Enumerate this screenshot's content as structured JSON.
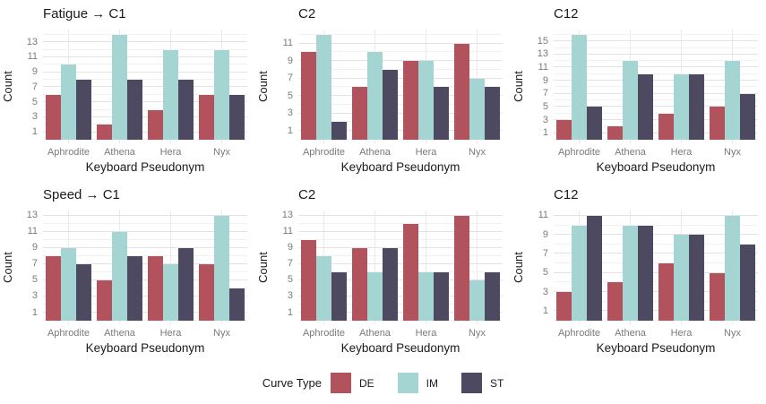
{
  "axes": {
    "x_title": "Keyboard Pseudonym",
    "y_title": "Count"
  },
  "legend": {
    "title": "Curve Type",
    "entries": [
      {
        "label": "DE",
        "color": "#B2525C"
      },
      {
        "label": "IM",
        "color": "#A5D5D3"
      },
      {
        "label": "ST",
        "color": "#4C4961"
      }
    ]
  },
  "chart_data": [
    {
      "type": "bar",
      "title": "Fatigue → C1",
      "xlabel": "Keyboard Pseudonym",
      "ylabel": "Count",
      "categories": [
        "Aphrodite",
        "Athena",
        "Hera",
        "Nyx"
      ],
      "yticks": [
        1,
        3,
        5,
        7,
        9,
        11,
        13
      ],
      "ylim": [
        0,
        14.7
      ],
      "legend": "none",
      "series": [
        {
          "name": "DE",
          "values": [
            6,
            2,
            4,
            6
          ]
        },
        {
          "name": "IM",
          "values": [
            10,
            14,
            12,
            12
          ]
        },
        {
          "name": "ST",
          "values": [
            8,
            8,
            8,
            6
          ]
        }
      ]
    },
    {
      "type": "bar",
      "title": "C2",
      "xlabel": "Keyboard Pseudonym",
      "ylabel": "Count",
      "categories": [
        "Aphrodite",
        "Athena",
        "Hera",
        "Nyx"
      ],
      "yticks": [
        1,
        3,
        5,
        7,
        9,
        11
      ],
      "ylim": [
        0,
        12.6
      ],
      "legend": "none",
      "series": [
        {
          "name": "DE",
          "values": [
            10,
            6,
            9,
            11
          ]
        },
        {
          "name": "IM",
          "values": [
            12,
            10,
            9,
            7
          ]
        },
        {
          "name": "ST",
          "values": [
            2,
            8,
            6,
            6
          ]
        }
      ]
    },
    {
      "type": "bar",
      "title": "C12",
      "xlabel": "Keyboard Pseudonym",
      "ylabel": "Count",
      "categories": [
        "Aphrodite",
        "Athena",
        "Hera",
        "Nyx"
      ],
      "yticks": [
        1,
        3,
        5,
        7,
        9,
        11,
        13,
        15
      ],
      "ylim": [
        0,
        16.8
      ],
      "legend": "none",
      "series": [
        {
          "name": "DE",
          "values": [
            3,
            2,
            4,
            5
          ]
        },
        {
          "name": "IM",
          "values": [
            16,
            12,
            10,
            12
          ]
        },
        {
          "name": "ST",
          "values": [
            5,
            10,
            10,
            7
          ]
        }
      ]
    },
    {
      "type": "bar",
      "title": "Speed → C1",
      "xlabel": "Keyboard Pseudonym",
      "ylabel": "Count",
      "categories": [
        "Aphrodite",
        "Athena",
        "Hera",
        "Nyx"
      ],
      "yticks": [
        1,
        3,
        5,
        7,
        9,
        11,
        13
      ],
      "ylim": [
        0,
        13.65
      ],
      "legend": "none",
      "series": [
        {
          "name": "DE",
          "values": [
            8,
            5,
            8,
            7
          ]
        },
        {
          "name": "IM",
          "values": [
            9,
            11,
            7,
            13
          ]
        },
        {
          "name": "ST",
          "values": [
            7,
            8,
            9,
            4
          ]
        }
      ]
    },
    {
      "type": "bar",
      "title": "C2",
      "xlabel": "Keyboard Pseudonym",
      "ylabel": "Count",
      "categories": [
        "Aphrodite",
        "Athena",
        "Hera",
        "Nyx"
      ],
      "yticks": [
        1,
        3,
        5,
        7,
        9,
        11,
        13
      ],
      "ylim": [
        0,
        13.65
      ],
      "legend": "none",
      "series": [
        {
          "name": "DE",
          "values": [
            10,
            9,
            12,
            13
          ]
        },
        {
          "name": "IM",
          "values": [
            8,
            6,
            6,
            5
          ]
        },
        {
          "name": "ST",
          "values": [
            6,
            9,
            6,
            6
          ]
        }
      ]
    },
    {
      "type": "bar",
      "title": "C12",
      "xlabel": "Keyboard Pseudonym",
      "ylabel": "Count",
      "categories": [
        "Aphrodite",
        "Athena",
        "Hera",
        "Nyx"
      ],
      "yticks": [
        1,
        3,
        5,
        7,
        9,
        11
      ],
      "ylim": [
        0,
        11.55
      ],
      "legend": "none",
      "series": [
        {
          "name": "DE",
          "values": [
            3,
            4,
            6,
            5
          ]
        },
        {
          "name": "IM",
          "values": [
            10,
            10,
            9,
            11
          ]
        },
        {
          "name": "ST",
          "values": [
            11,
            10,
            9,
            8
          ]
        }
      ]
    }
  ]
}
